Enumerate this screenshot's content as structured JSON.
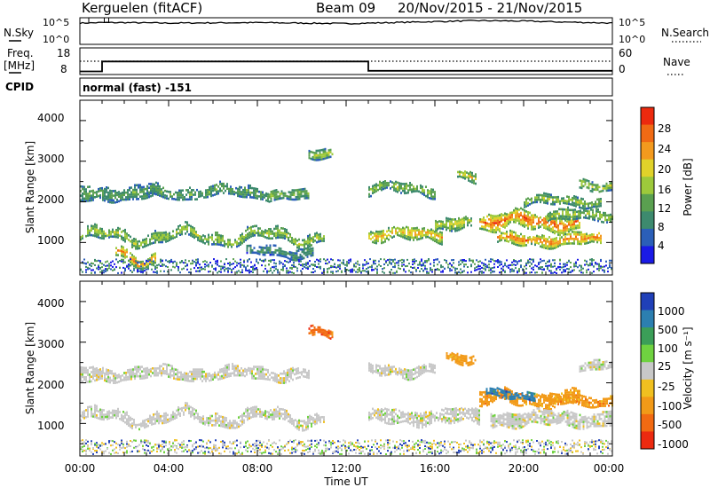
{
  "header": {
    "station": "Kerguelen (fitACF)",
    "beam": "Beam 09",
    "dates": "20/Nov/2015 - 21/Nov/2015"
  },
  "sky_panel": {
    "left_label": "N.Sky",
    "left_ticks": [
      "10^5",
      "10^0"
    ],
    "right_ticks": [
      "10^5",
      "10^0"
    ],
    "right_label": "N.Search"
  },
  "freq_panel": {
    "label_line1": "Freq.",
    "label_line2": "[MHz]",
    "left_ticks": [
      "18",
      "8"
    ],
    "right_ticks": [
      "60",
      "0"
    ],
    "right_label": "Nave"
  },
  "cpid_panel": {
    "label": "CPID",
    "program": "normal (fast) -151"
  },
  "power_panel": {
    "ylabel": "Slant Range [km]",
    "yticks": [
      "4000",
      "3000",
      "2000",
      "1000"
    ],
    "colorbar_label": "Power [dB]",
    "colorbar_ticks": [
      "28",
      "24",
      "20",
      "16",
      "12",
      "8",
      "4"
    ]
  },
  "velocity_panel": {
    "ylabel": "Slant Range [km]",
    "yticks": [
      "4000",
      "3000",
      "2000",
      "1000"
    ],
    "colorbar_label": "Velocity  [m s⁻¹]",
    "colorbar_ticks": [
      "1000",
      "500",
      "100",
      "25",
      "-25",
      "-100",
      "-500",
      "-1000"
    ]
  },
  "x_axis": {
    "label": "Time UT",
    "ticks": [
      "00:00",
      "04:00",
      "08:00",
      "12:00",
      "16:00",
      "20:00",
      "00:00"
    ]
  },
  "chart_data": [
    {
      "type": "line",
      "name": "sky-noise-search-noise",
      "x_unit": "hours UT",
      "x_range": [
        0,
        24
      ],
      "y_scale": "log",
      "y_range": [
        "10^0",
        "10^5"
      ],
      "series": [
        {
          "name": "N.Sky",
          "x": [
            0,
            1,
            2,
            4,
            8,
            12,
            14,
            16,
            18,
            20,
            22,
            24
          ],
          "y_log10": [
            4.1,
            4.2,
            4.2,
            4.1,
            4.2,
            4.0,
            4.2,
            4.4,
            4.6,
            4.5,
            4.3,
            4.1
          ]
        }
      ]
    },
    {
      "type": "line",
      "name": "frequency-nave",
      "x_unit": "hours UT",
      "x_range": [
        0,
        24
      ],
      "y_left_range": [
        8,
        18
      ],
      "y_right_range": [
        0,
        60
      ],
      "series": [
        {
          "name": "Freq.",
          "x": [
            0,
            1.0,
            1.0,
            13.0,
            13.0,
            24
          ],
          "y": [
            9.2,
            9.2,
            14.5,
            14.5,
            9.5,
            9.5
          ]
        },
        {
          "name": "Nave",
          "x": [
            0,
            24
          ],
          "y": [
            40,
            40
          ]
        }
      ]
    },
    {
      "type": "heatmap",
      "name": "power",
      "x_unit": "hours UT",
      "x_range": [
        0,
        24
      ],
      "ylim": [
        200,
        4500
      ],
      "ylabel": "Slant Range [km]",
      "colorbar_range": [
        0,
        30
      ],
      "colorbar_unit": "dB",
      "colors": [
        "#1a1ae6",
        "#2b5fb8",
        "#3d8a6e",
        "#5aa050",
        "#9dc93b",
        "#e0d22a",
        "#f39a1e",
        "#f06a14",
        "#ec2a0e"
      ],
      "bands": [
        {
          "t0": 0.0,
          "t1": 11.0,
          "r": 1180,
          "amp": 140,
          "w": 130,
          "p": 16
        },
        {
          "t0": 0.0,
          "t1": 1.0,
          "r": 2250,
          "amp": 0,
          "w": 180,
          "p": 12
        },
        {
          "t0": 1.0,
          "t1": 3.5,
          "r": 2250,
          "amp": 60,
          "w": 160,
          "p": 11
        },
        {
          "t0": 3.0,
          "t1": 8.5,
          "r": 2270,
          "amp": 80,
          "w": 130,
          "p": 12
        },
        {
          "t0": 8.5,
          "t1": 10.3,
          "r": 2170,
          "amp": 60,
          "w": 120,
          "p": 14
        },
        {
          "t0": 10.3,
          "t1": 11.4,
          "r": 3250,
          "amp": 60,
          "w": 110,
          "p": 16
        },
        {
          "t0": 1.6,
          "t1": 3.4,
          "r": 700,
          "amp": 160,
          "w": 120,
          "p": 26
        },
        {
          "t0": 7.5,
          "t1": 10.5,
          "r": 800,
          "amp": 70,
          "w": 110,
          "p": 10
        },
        {
          "t0": 13.0,
          "t1": 16.3,
          "r": 1230,
          "amp": 60,
          "w": 150,
          "p": 22
        },
        {
          "t0": 13.0,
          "t1": 16.0,
          "r": 2350,
          "amp": 80,
          "w": 120,
          "p": 15
        },
        {
          "t0": 16.0,
          "t1": 17.6,
          "r": 1450,
          "amp": 80,
          "w": 150,
          "p": 18
        },
        {
          "t0": 17.0,
          "t1": 17.8,
          "r": 2650,
          "amp": 60,
          "w": 110,
          "p": 20
        },
        {
          "t0": 18.0,
          "t1": 22.5,
          "r": 1550,
          "amp": 100,
          "w": 200,
          "p": 27
        },
        {
          "t0": 18.8,
          "t1": 23.5,
          "r": 1100,
          "amp": 60,
          "w": 140,
          "p": 26
        },
        {
          "t0": 21.0,
          "t1": 24.0,
          "r": 1700,
          "amp": 50,
          "w": 130,
          "p": 16
        },
        {
          "t0": 22.5,
          "t1": 24.0,
          "r": 2450,
          "amp": 60,
          "w": 110,
          "p": 16
        },
        {
          "t0": 20.0,
          "t1": 23.5,
          "r": 2050,
          "amp": 60,
          "w": 110,
          "p": 15
        }
      ]
    },
    {
      "type": "heatmap",
      "name": "velocity",
      "x_unit": "hours UT",
      "x_range": [
        0,
        24
      ],
      "ylim": [
        200,
        4500
      ],
      "ylabel": "Slant Range [km]",
      "colorbar_unit": "m s^-1",
      "colorbar_levels": [
        1000,
        500,
        100,
        25,
        -25,
        -100,
        -500,
        -1000
      ],
      "colors": [
        "#2040b8",
        "#2c7fb0",
        "#3b9e58",
        "#6fd240",
        "#c8c8c8",
        "#f0c020",
        "#f29a18",
        "#f26a12",
        "#ec2a10"
      ],
      "bands": [
        {
          "t0": 0.0,
          "t1": 11.0,
          "r": 1180,
          "amp": 140,
          "w": 130,
          "c": 4
        },
        {
          "t0": 0.0,
          "t1": 1.0,
          "r": 2250,
          "amp": 0,
          "w": 180,
          "c": 4
        },
        {
          "t0": 1.0,
          "t1": 10.3,
          "r": 2260,
          "amp": 70,
          "w": 140,
          "c": 4
        },
        {
          "t0": 10.3,
          "t1": 11.4,
          "r": 3250,
          "amp": 60,
          "w": 110,
          "c": 7
        },
        {
          "t0": 13.0,
          "t1": 18.0,
          "r": 1200,
          "amp": 60,
          "w": 170,
          "c": 4
        },
        {
          "t0": 13.0,
          "t1": 16.0,
          "r": 2350,
          "amp": 80,
          "w": 120,
          "c": 4
        },
        {
          "t0": 16.5,
          "t1": 17.8,
          "r": 2650,
          "amp": 60,
          "w": 110,
          "c": 6
        },
        {
          "t0": 18.0,
          "t1": 22.5,
          "r": 1650,
          "amp": 90,
          "w": 160,
          "c": 6
        },
        {
          "t0": 18.3,
          "t1": 20.5,
          "r": 1750,
          "amp": 60,
          "w": 90,
          "c": 1
        },
        {
          "t0": 21.0,
          "t1": 24.0,
          "r": 1600,
          "amp": 50,
          "w": 120,
          "c": 6
        },
        {
          "t0": 18.5,
          "t1": 24.0,
          "r": 1150,
          "amp": 60,
          "w": 180,
          "c": 4
        },
        {
          "t0": 22.5,
          "t1": 24.0,
          "r": 2450,
          "amp": 60,
          "w": 110,
          "c": 4
        }
      ]
    }
  ]
}
